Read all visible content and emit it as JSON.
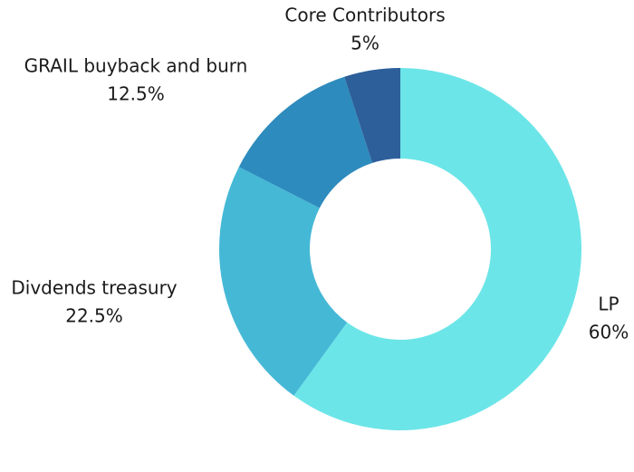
{
  "chart_data": {
    "type": "donut",
    "categories": [
      "LP",
      "Divdends treasury",
      "GRAIL buyback and burn",
      "Core Contributors"
    ],
    "values": [
      60,
      22.5,
      12.5,
      5
    ],
    "value_labels": [
      "60%",
      "22.5%",
      "12.5%",
      "5%"
    ],
    "colors": [
      "#6ce5e8",
      "#45b8d6",
      "#2e8bbd",
      "#2d5f9a"
    ]
  }
}
